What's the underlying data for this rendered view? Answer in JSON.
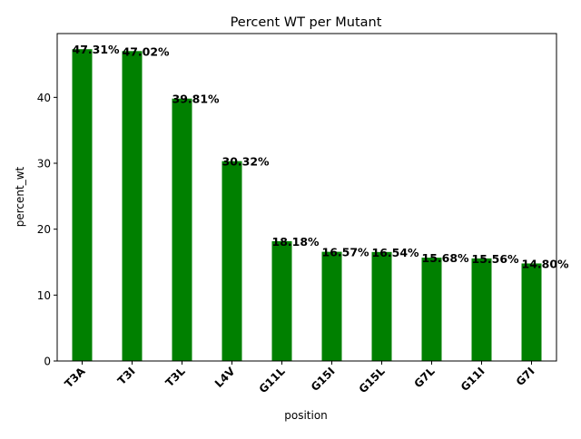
{
  "chart_data": {
    "type": "bar",
    "title": "Percent WT per Mutant",
    "xlabel": "position",
    "ylabel": "percent_wt",
    "categories": [
      "T3A",
      "T3I",
      "T3L",
      "L4V",
      "G11L",
      "G15I",
      "G15L",
      "G7L",
      "G11I",
      "G7I"
    ],
    "values": [
      47.31,
      47.02,
      39.81,
      30.32,
      18.18,
      16.57,
      16.54,
      15.68,
      15.56,
      14.8
    ],
    "data_labels": [
      "47.31%",
      "47.02%",
      "39.81%",
      "30.32%",
      "18.18%",
      "16.57%",
      "16.54%",
      "15.68%",
      "15.56%",
      "14.80%"
    ],
    "yticks": [
      0,
      10,
      20,
      30,
      40
    ],
    "ylim": [
      0,
      49.68
    ],
    "bar_color": "#008000",
    "grid": false,
    "legend": "none"
  }
}
